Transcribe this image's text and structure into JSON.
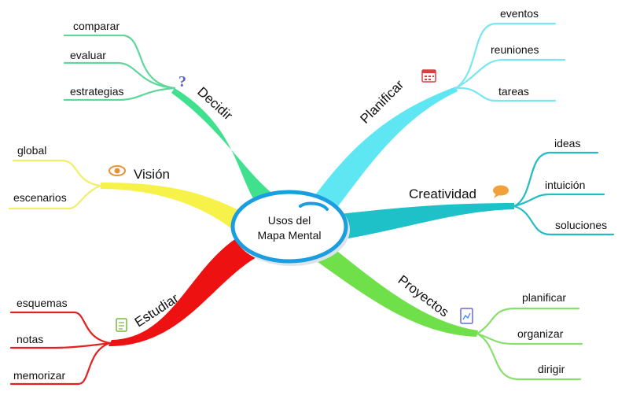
{
  "center": {
    "line1": "Usos del",
    "line2": "Mapa Mental",
    "color": "#1a9ee0"
  },
  "branches": {
    "decidir": {
      "label": "Decidir",
      "color": "#3fe08e",
      "leaf_color": "#5fd69a",
      "icon": "question-mark-icon",
      "leaves": [
        "comparar",
        "evaluar",
        "estrategias"
      ]
    },
    "vision": {
      "label": "Visión",
      "color": "#f6f24a",
      "leaf_color": "#f2ee6a",
      "icon": "eye-icon",
      "leaves": [
        "global",
        "escenarios"
      ]
    },
    "estudiar": {
      "label": "Estudiar",
      "color": "#ee1111",
      "leaf_color": "#e42020",
      "icon": "notes-icon",
      "leaves": [
        "esquemas",
        "notas",
        "memorizar"
      ]
    },
    "planificar": {
      "label": "Planificar",
      "color": "#5fe6f3",
      "leaf_color": "#78e7f2",
      "icon": "calendar-icon",
      "leaves": [
        "eventos",
        "reuniones",
        "tareas"
      ]
    },
    "creatividad": {
      "label": "Creatividad",
      "color": "#1fc1c8",
      "leaf_color": "#22bcc2",
      "icon": "speech-bubble-icon",
      "leaves": [
        "ideas",
        "intuición",
        "soluciones"
      ]
    },
    "proyectos": {
      "label": "Proyectos",
      "color": "#6fe04a",
      "leaf_color": "#88e06c",
      "icon": "chart-document-icon",
      "leaves": [
        "planificar",
        "organizar",
        "dirigir"
      ]
    }
  }
}
